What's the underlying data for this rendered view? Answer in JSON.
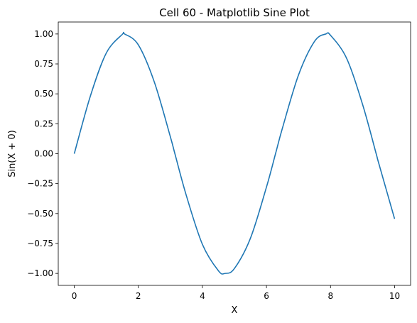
{
  "chart_data": {
    "type": "line",
    "title": "Cell 60 - Matplotlib Sine Plot",
    "xlabel": "X",
    "ylabel": "Sin(X + 0)",
    "xlim": [
      -0.5,
      10.5
    ],
    "ylim": [
      -1.1,
      1.1
    ],
    "x_ticks": [
      0,
      2,
      4,
      6,
      8,
      10
    ],
    "x_tick_labels": [
      "0",
      "2",
      "4",
      "6",
      "8",
      "10"
    ],
    "y_ticks": [
      1.0,
      0.75,
      0.5,
      0.25,
      0.0,
      -0.25,
      -0.5,
      -0.75,
      -1.0
    ],
    "y_tick_labels": [
      "1.00",
      "0.75",
      "0.50",
      "0.25",
      "0.00",
      "−0.25",
      "−0.50",
      "−0.75",
      "−1.00"
    ],
    "grid": false,
    "series": [
      {
        "color": "#1f77b4",
        "x": [
          0,
          0.5,
          1,
          1.5,
          1.5708,
          2,
          2.5,
          3,
          3.1416,
          3.5,
          4,
          4.5,
          4.7124,
          5,
          5.5,
          6,
          6.2832,
          6.5,
          7,
          7.5,
          7.854,
          8,
          8.5,
          9,
          9.4248,
          9.5,
          10
        ],
        "y": [
          0,
          0.479,
          0.841,
          0.997,
          1.0,
          0.909,
          0.598,
          0.141,
          0.0,
          -0.351,
          -0.757,
          -0.978,
          -1.0,
          -0.959,
          -0.706,
          -0.279,
          0.0,
          0.215,
          0.657,
          0.938,
          1.0,
          0.989,
          0.798,
          0.412,
          0.0,
          -0.075,
          -0.544
        ]
      }
    ]
  }
}
